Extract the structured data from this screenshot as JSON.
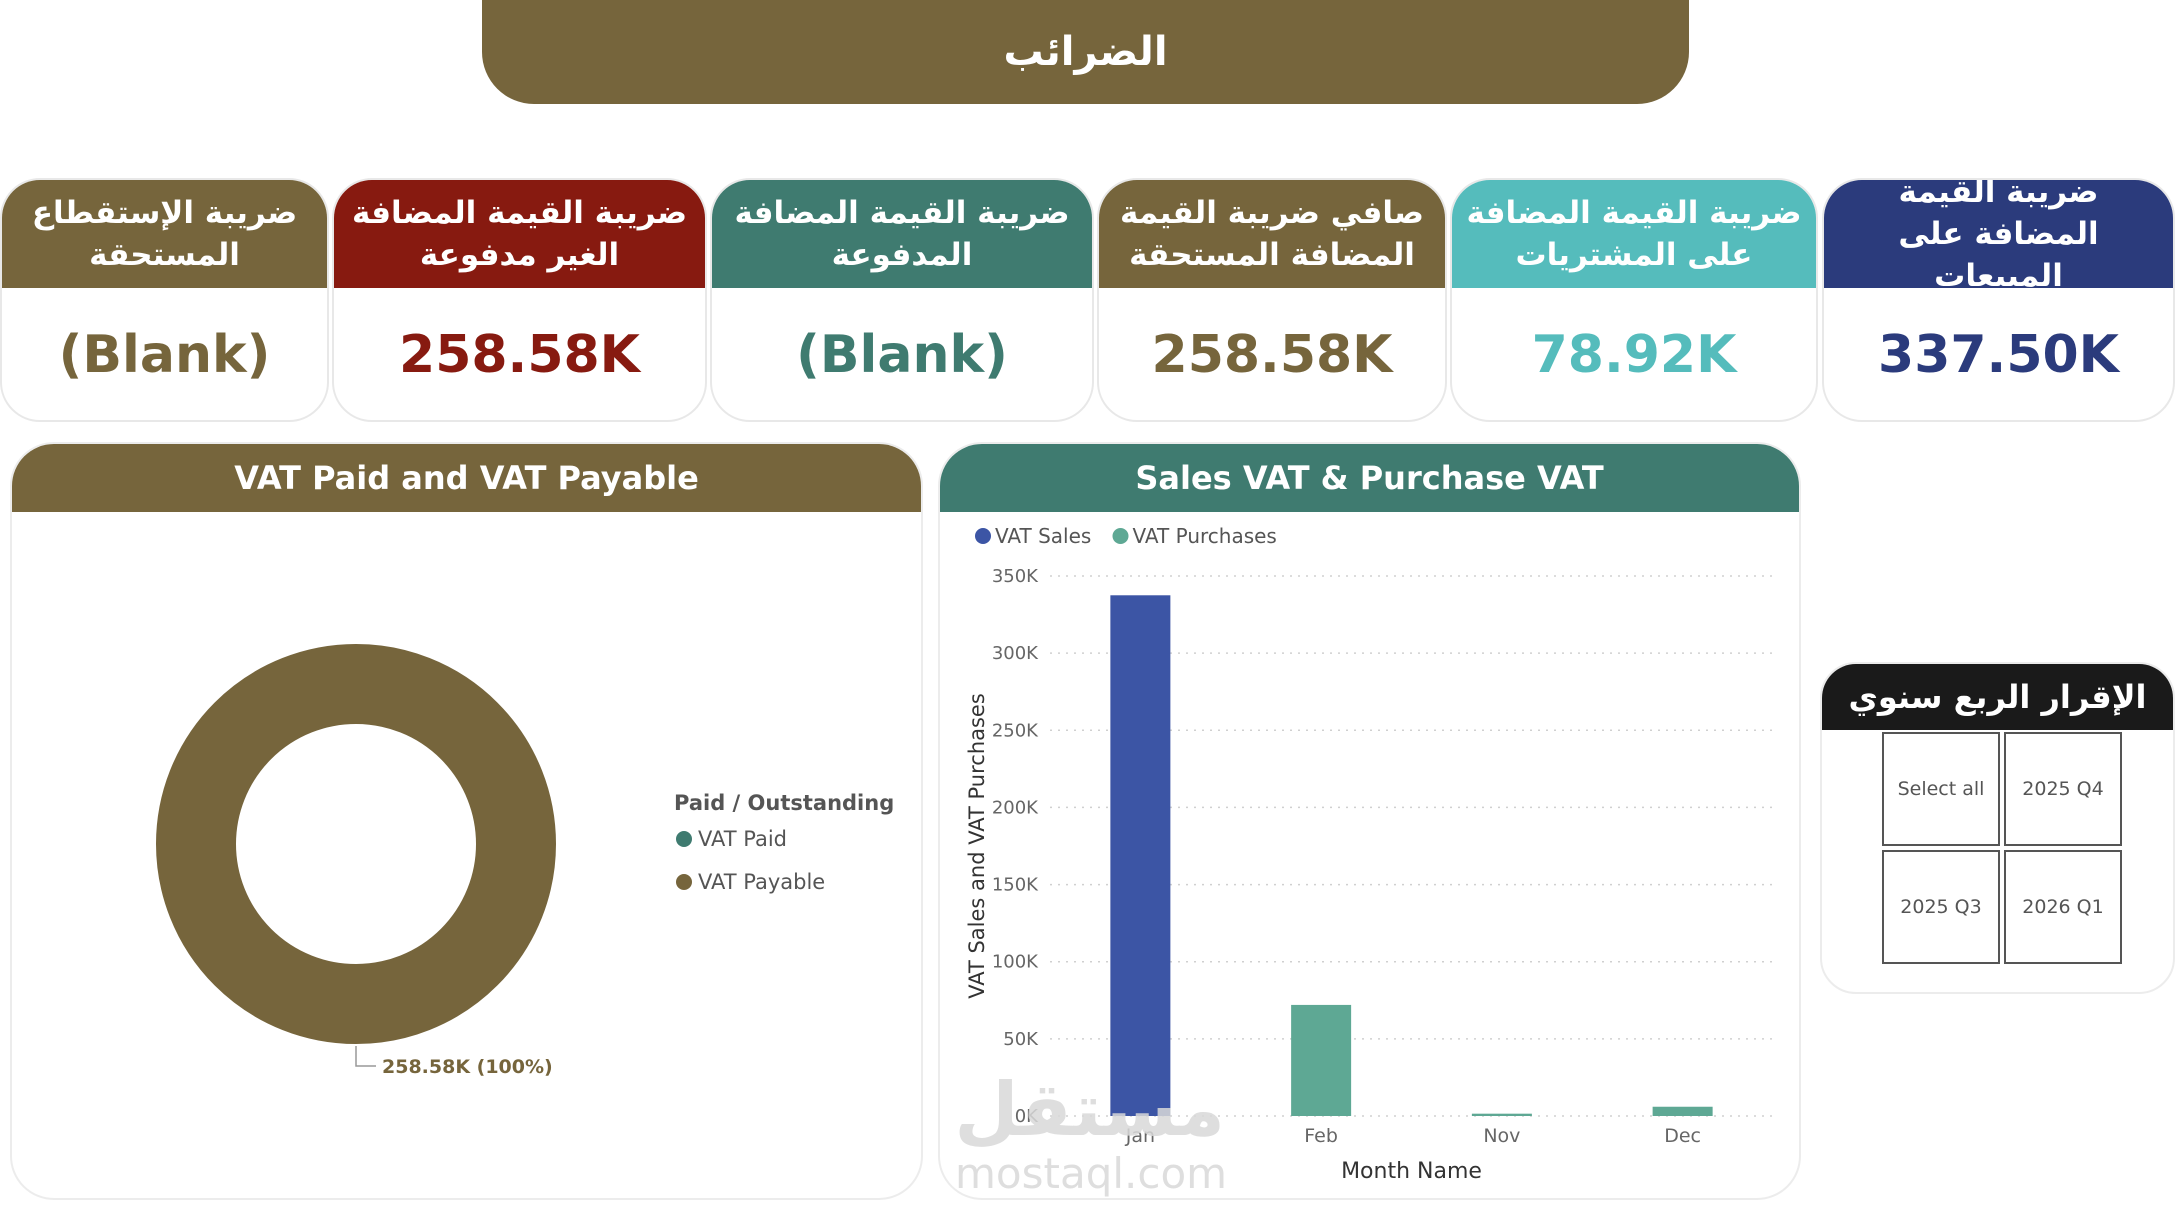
{
  "title": "الضرائب",
  "kpis": [
    {
      "label": "ضريبة القيمة المضافة على المبيعات",
      "value": "337.50K",
      "color": "#2b3b7c"
    },
    {
      "label": "ضريبة القيمة المضافة على المشتريات",
      "value": "78.92K",
      "color": "#55bcbc"
    },
    {
      "label": "صافي ضريبة القيمة المضافة المستحقة",
      "value": "258.58K",
      "color": "#76653c"
    },
    {
      "label": "ضريبة القيمة المضافة المدفوعة",
      "value": "(Blank)",
      "color": "#3f7b70"
    },
    {
      "label": "ضريبة القيمة المضافة الغير مدفوعة",
      "value": "258.58K",
      "color": "#871a10"
    },
    {
      "label": "ضريبة الإستقطاع المستحقة",
      "value": "(Blank)",
      "color": "#76653c"
    }
  ],
  "donut_panel": {
    "title": "VAT Paid and VAT Payable",
    "header_color": "#76653c"
  },
  "bar_panel": {
    "title": "Sales VAT & Purchase VAT",
    "header_color": "#3f7b70"
  },
  "slicer": {
    "title": "الإقرار الربع سنوي",
    "options": [
      "Select all",
      "2025 Q4",
      "2025 Q3",
      "2026 Q1"
    ]
  },
  "watermark": {
    "arabic": "مستقل",
    "latin": "mostaql.com"
  },
  "chart_data": [
    {
      "type": "pie",
      "legend_title": "Paid / Outstanding",
      "legend_position": "right",
      "slices": [
        {
          "name": "VAT Paid",
          "value": 0,
          "color": "#3f7b70"
        },
        {
          "name": "VAT Payable",
          "value": 258.58,
          "color": "#76653c"
        }
      ],
      "data_label": "258.58K (100%)",
      "unit": "K"
    },
    {
      "type": "bar",
      "categories": [
        "Jan",
        "Feb",
        "Nov",
        "Dec"
      ],
      "series": [
        {
          "name": "VAT Sales",
          "values": [
            337.5,
            0,
            0,
            0
          ],
          "color": "#3c55a5"
        },
        {
          "name": "VAT Purchases",
          "values": [
            0,
            72,
            1.5,
            6
          ],
          "color": "#5ea894"
        }
      ],
      "xlabel": "Month Name",
      "ylabel": "VAT Sales and VAT Purchases",
      "yticks": [
        "0K",
        "50K",
        "100K",
        "150K",
        "200K",
        "250K",
        "300K",
        "350K"
      ],
      "ylim": [
        0,
        350
      ],
      "grid": true,
      "legend_position": "top-left"
    }
  ]
}
